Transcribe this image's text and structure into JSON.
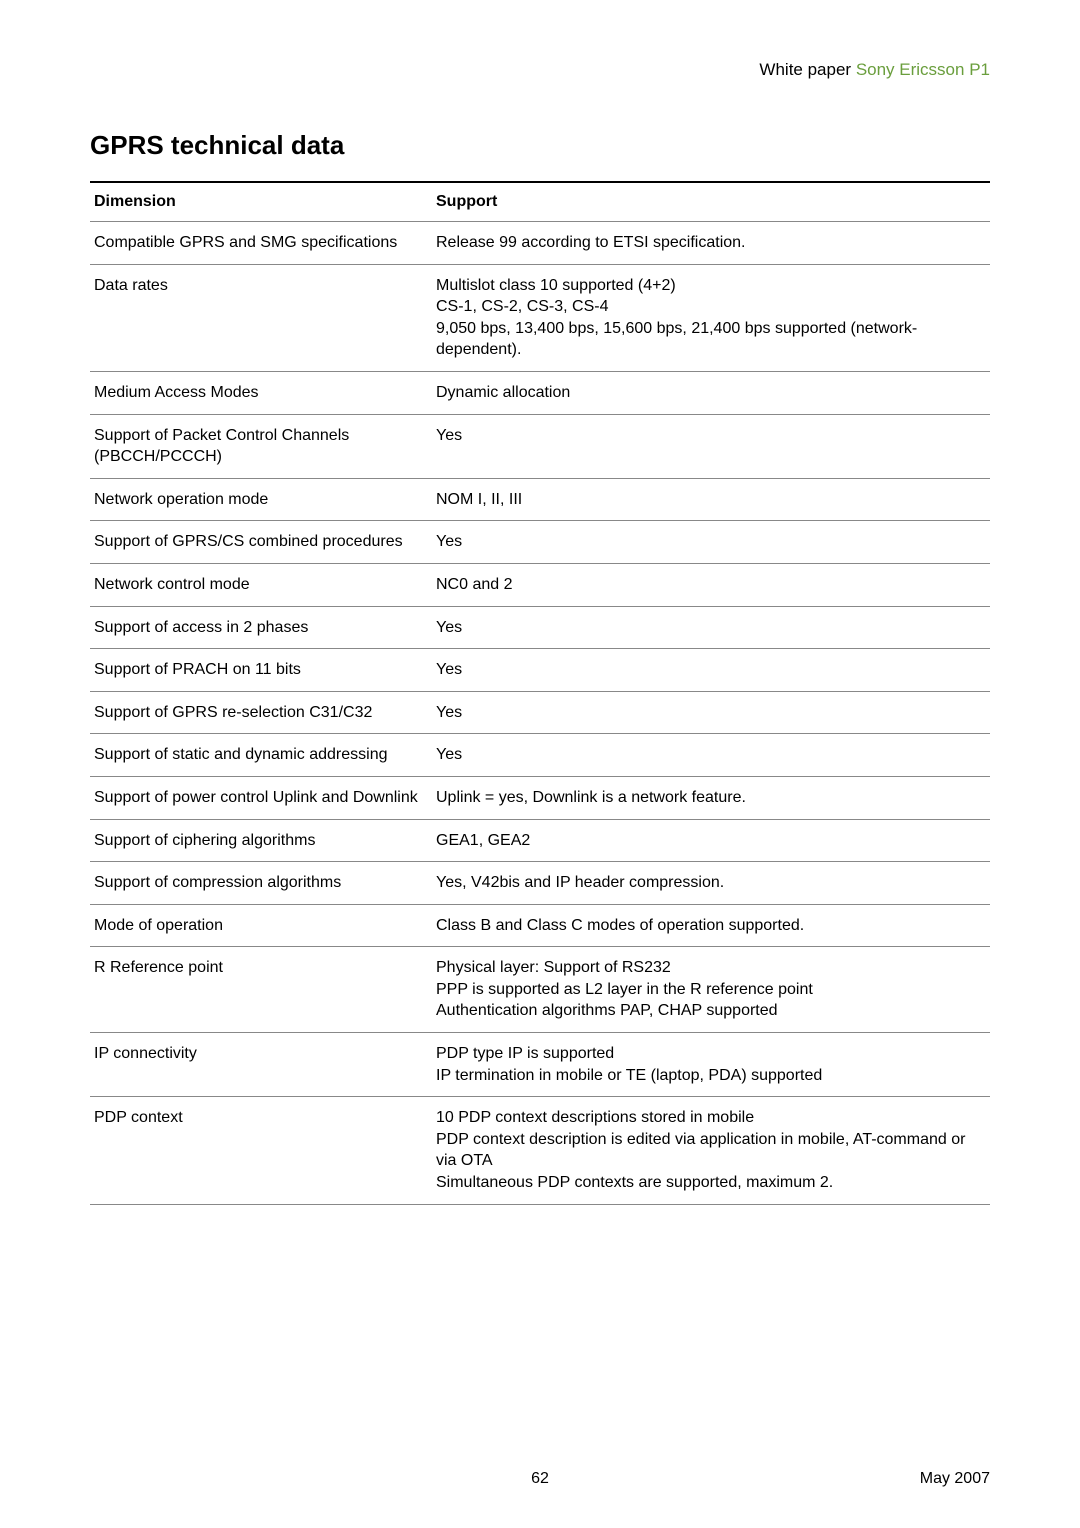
{
  "header": {
    "prefix": "White paper ",
    "product": "Sony Ericsson P1"
  },
  "title": "GPRS technical data",
  "table": {
    "columns": [
      "Dimension",
      "Support"
    ],
    "rows": [
      {
        "dimension": "Compatible GPRS and SMG specifications",
        "support": "Release 99 according to ETSI specification."
      },
      {
        "dimension": "Data rates",
        "support": "Multislot class 10 supported (4+2)\nCS-1, CS-2, CS-3, CS-4\n9,050 bps, 13,400 bps, 15,600 bps, 21,400 bps supported (network-dependent)."
      },
      {
        "dimension": "Medium Access Modes",
        "support": "Dynamic allocation"
      },
      {
        "dimension": "Support of Packet Control Channels (PBCCH/PCCCH)",
        "support": "Yes"
      },
      {
        "dimension": "Network operation mode",
        "support": "NOM I, II, III"
      },
      {
        "dimension": "Support of GPRS/CS combined procedures",
        "support": "Yes"
      },
      {
        "dimension": "Network control mode",
        "support": "NC0 and 2"
      },
      {
        "dimension": "Support of access in 2 phases",
        "support": "Yes"
      },
      {
        "dimension": "Support of PRACH on 11 bits",
        "support": "Yes"
      },
      {
        "dimension": "Support of GPRS re-selection C31/C32",
        "support": "Yes"
      },
      {
        "dimension": "Support of static and dynamic addressing",
        "support": "Yes"
      },
      {
        "dimension": "Support of power control Uplink and Downlink",
        "support": "Uplink = yes, Downlink is a network feature."
      },
      {
        "dimension": "Support of ciphering algorithms",
        "support": "GEA1, GEA2"
      },
      {
        "dimension": "Support of compression algorithms",
        "support": "Yes, V42bis and IP header compression."
      },
      {
        "dimension": "Mode of operation",
        "support": "Class B and Class C modes of operation supported."
      },
      {
        "dimension": "R Reference point",
        "support": "Physical layer: Support of RS232\nPPP is supported as L2 layer in the R reference point\nAuthentication algorithms PAP, CHAP supported"
      },
      {
        "dimension": "IP connectivity",
        "support": "PDP type IP is supported\nIP termination in mobile or TE (laptop, PDA) supported"
      },
      {
        "dimension": "PDP context",
        "support": "10 PDP context descriptions stored in mobile\nPDP context description is edited via application in mobile, AT-command or via OTA\nSimultaneous PDP contexts are supported, maximum 2."
      }
    ]
  },
  "footer": {
    "page": "62",
    "date": "May 2007"
  }
}
